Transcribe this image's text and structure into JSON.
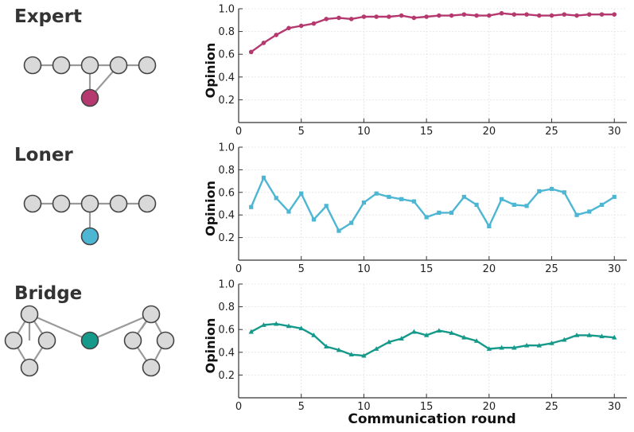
{
  "chart_data": [
    {
      "type": "line",
      "panel_title": "Expert",
      "color": "#b5386f",
      "marker": "circle",
      "ylabel": "Opinion",
      "xlabel": "",
      "ylim": [
        0.0,
        1.0
      ],
      "xlim": [
        0,
        31
      ],
      "yticks": [
        "0.2",
        "0.4",
        "0.6",
        "0.8",
        "1.0"
      ],
      "xticks": [
        "0",
        "5",
        "10",
        "15",
        "20",
        "25",
        "30"
      ],
      "x": [
        1,
        2,
        3,
        4,
        5,
        6,
        7,
        8,
        9,
        10,
        11,
        12,
        13,
        14,
        15,
        16,
        17,
        18,
        19,
        20,
        21,
        22,
        23,
        24,
        25,
        26,
        27,
        28,
        29,
        30
      ],
      "values": [
        0.62,
        0.7,
        0.77,
        0.83,
        0.85,
        0.87,
        0.91,
        0.92,
        0.91,
        0.93,
        0.93,
        0.93,
        0.94,
        0.92,
        0.93,
        0.94,
        0.94,
        0.95,
        0.94,
        0.94,
        0.96,
        0.95,
        0.95,
        0.94,
        0.94,
        0.95,
        0.94,
        0.95,
        0.95,
        0.95
      ]
    },
    {
      "type": "line",
      "panel_title": "Loner",
      "color": "#4db6d3",
      "marker": "square",
      "ylabel": "Opinion",
      "xlabel": "",
      "ylim": [
        0.0,
        1.0
      ],
      "xlim": [
        0,
        31
      ],
      "yticks": [
        "0.2",
        "0.4",
        "0.6",
        "0.8",
        "1.0"
      ],
      "xticks": [
        "0",
        "5",
        "10",
        "15",
        "20",
        "25",
        "30"
      ],
      "x": [
        1,
        2,
        3,
        4,
        5,
        6,
        7,
        8,
        9,
        10,
        11,
        12,
        13,
        14,
        15,
        16,
        17,
        18,
        19,
        20,
        21,
        22,
        23,
        24,
        25,
        26,
        27,
        28,
        29,
        30
      ],
      "values": [
        0.47,
        0.73,
        0.55,
        0.43,
        0.59,
        0.36,
        0.48,
        0.26,
        0.33,
        0.51,
        0.59,
        0.56,
        0.54,
        0.52,
        0.38,
        0.42,
        0.42,
        0.56,
        0.49,
        0.3,
        0.54,
        0.49,
        0.48,
        0.61,
        0.63,
        0.6,
        0.4,
        0.43,
        0.49,
        0.56
      ]
    },
    {
      "type": "line",
      "panel_title": "Bridge",
      "color": "#15998a",
      "marker": "triangle",
      "ylabel": "Opinion",
      "xlabel": "Communication round",
      "ylim": [
        0.0,
        1.0
      ],
      "xlim": [
        0,
        31
      ],
      "yticks": [
        "0.2",
        "0.4",
        "0.6",
        "0.8",
        "1.0"
      ],
      "xticks": [
        "0",
        "5",
        "10",
        "15",
        "20",
        "25",
        "30"
      ],
      "x": [
        1,
        2,
        3,
        4,
        5,
        6,
        7,
        8,
        9,
        10,
        11,
        12,
        13,
        14,
        15,
        16,
        17,
        18,
        19,
        20,
        21,
        22,
        23,
        24,
        25,
        26,
        27,
        28,
        29,
        30
      ],
      "values": [
        0.58,
        0.64,
        0.65,
        0.63,
        0.61,
        0.55,
        0.45,
        0.42,
        0.38,
        0.37,
        0.43,
        0.49,
        0.52,
        0.58,
        0.55,
        0.59,
        0.57,
        0.53,
        0.5,
        0.43,
        0.44,
        0.44,
        0.46,
        0.46,
        0.48,
        0.51,
        0.55,
        0.55,
        0.54,
        0.53
      ]
    }
  ],
  "diagrams": [
    {
      "name": "expert",
      "node_fill": "#d9d9d9",
      "node_stroke": "#444444",
      "edge_color": "#9a9a9a",
      "highlight_fill": "#b5386f"
    },
    {
      "name": "loner",
      "node_fill": "#d9d9d9",
      "node_stroke": "#444444",
      "edge_color": "#9a9a9a",
      "highlight_fill": "#4db6d3"
    },
    {
      "name": "bridge",
      "node_fill": "#d9d9d9",
      "node_stroke": "#444444",
      "edge_color": "#9a9a9a",
      "highlight_fill": "#15998a"
    }
  ],
  "style": {
    "axis_color": "#333333",
    "grid_color": "#e2e2e2"
  }
}
